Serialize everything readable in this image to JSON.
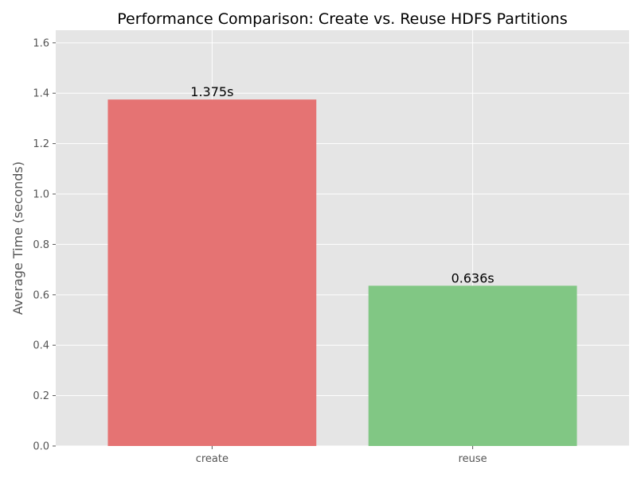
{
  "chart_data": {
    "type": "bar",
    "title": "Performance Comparison: Create vs. Reuse HDFS Partitions",
    "xlabel": "",
    "ylabel": "Average Time (seconds)",
    "categories": [
      "create",
      "reuse"
    ],
    "values": [
      1.375,
      0.636
    ],
    "value_labels": [
      "1.375s",
      "0.636s"
    ],
    "bar_colors": [
      "#e57373",
      "#81c784"
    ],
    "ylim": [
      0,
      1.65
    ],
    "yticks": [
      0.0,
      0.2,
      0.4,
      0.6,
      0.8,
      1.0,
      1.2,
      1.4,
      1.6
    ],
    "ytick_labels": [
      "0.0",
      "0.2",
      "0.4",
      "0.6",
      "0.8",
      "1.0",
      "1.2",
      "1.4",
      "1.6"
    ],
    "grid": true,
    "style": {
      "plot_background": "#e5e5e5",
      "grid_color": "#ffffff",
      "tick_color": "#555555"
    }
  }
}
